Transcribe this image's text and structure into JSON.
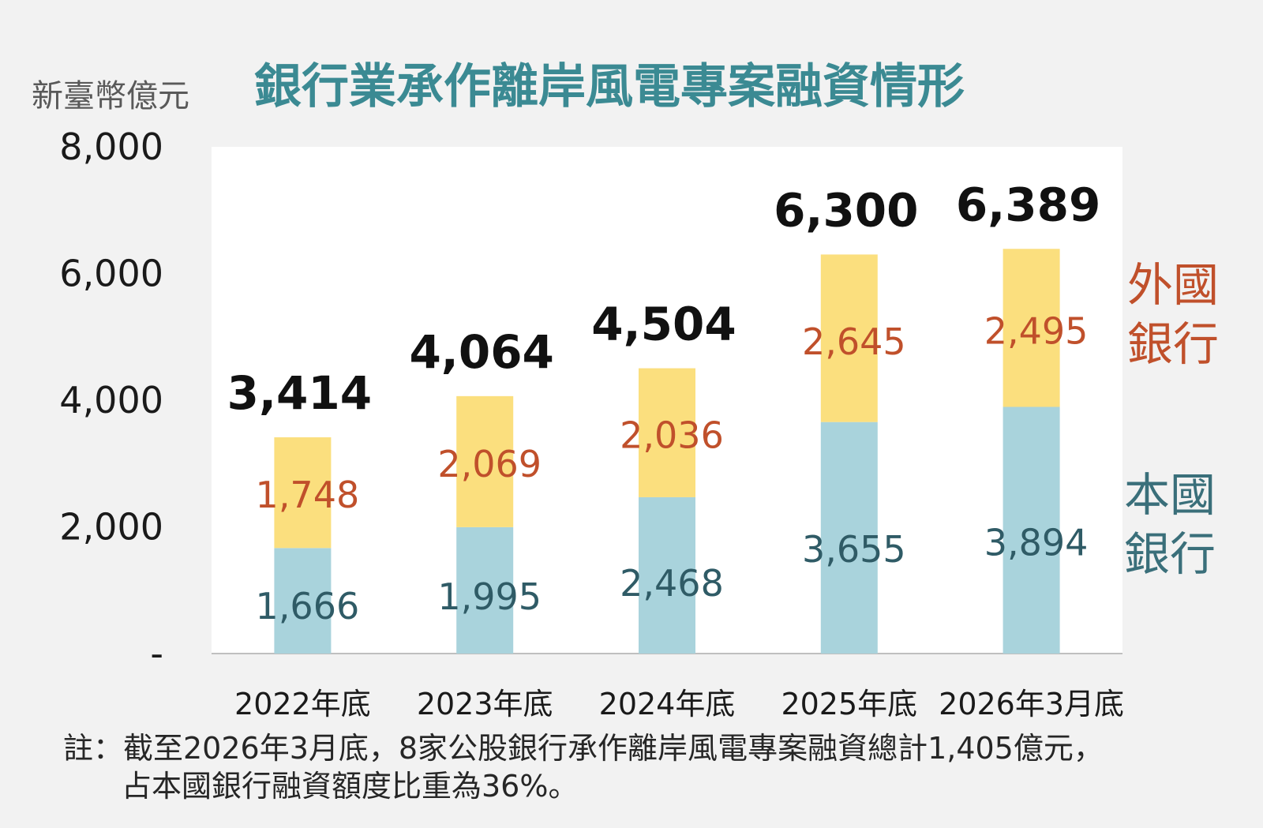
{
  "unit": "新臺幣億元",
  "title": "銀行業承作離岸風電專案融資情形",
  "chart_data": {
    "type": "bar",
    "stacked": true,
    "categories": [
      "2022年底",
      "2023年底",
      "2024年底",
      "2025年底",
      "2026年3月底"
    ],
    "series": [
      {
        "name": "本國銀行",
        "values": [
          1666,
          1995,
          2468,
          3655,
          3894
        ],
        "color": "#a9d3dc"
      },
      {
        "name": "外國銀行",
        "values": [
          1748,
          2069,
          2036,
          2645,
          2495
        ],
        "color": "#fbdf7e"
      }
    ],
    "totals": [
      3414,
      4064,
      4504,
      6300,
      6389
    ],
    "data_labels": {
      "domestic": [
        "1,666",
        "1,995",
        "2,468",
        "3,655",
        "3,894"
      ],
      "foreign": [
        "1,748",
        "2,069",
        "2,036",
        "2,645",
        "2,495"
      ],
      "totals": [
        "3,414",
        "4,064",
        "4,504",
        "6,300",
        "6,389"
      ]
    },
    "ylim": [
      0,
      8000
    ],
    "yticks": [
      0,
      2000,
      4000,
      6000,
      8000
    ],
    "ytick_labels": [
      "-",
      "2,000",
      "4,000",
      "6,000",
      "8,000"
    ],
    "legend": {
      "placement": "right",
      "foreign_lines": [
        "外國",
        "銀行"
      ],
      "domestic_lines": [
        "本國",
        "銀行"
      ]
    }
  },
  "note": {
    "line1": "註：截至2026年3月底，8家公股銀行承作離岸風電專案融資總計1,405億元，",
    "line2": "占本國銀行融資額度比重為36%。"
  }
}
